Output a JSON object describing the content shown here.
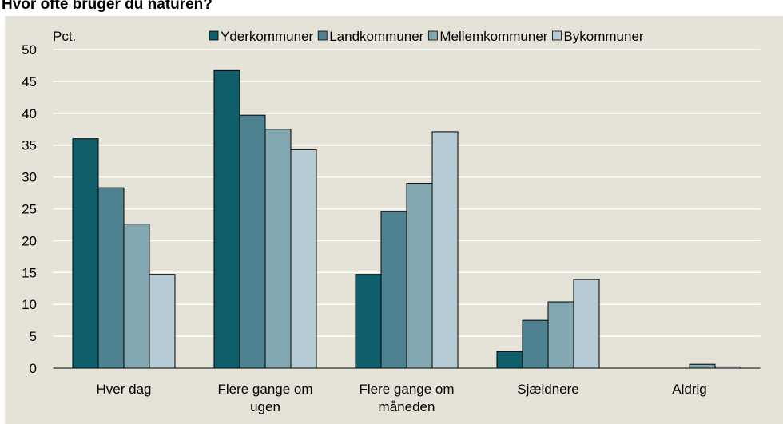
{
  "chart_data": {
    "type": "bar",
    "title": "Hvor ofte bruger du naturen?",
    "y_label": "Pct.",
    "categories": [
      "Hver dag",
      "Flere gange om ugen",
      "Flere gange om måneden",
      "Sjældnere",
      "Aldrig"
    ],
    "series": [
      {
        "name": "Yderkommuner",
        "color": "#0e5f6b",
        "values": [
          36,
          46.7,
          14.7,
          2.6,
          0
        ]
      },
      {
        "name": "Landkommuner",
        "color": "#4f8291",
        "values": [
          28.3,
          39.7,
          24.6,
          7.5,
          0
        ]
      },
      {
        "name": "Mellemkommuner",
        "color": "#82a7b0",
        "values": [
          22.6,
          37.5,
          29,
          10.4,
          0.6
        ]
      },
      {
        "name": "Bykommuner",
        "color": "#b7cbd5",
        "values": [
          14.7,
          34.3,
          37.1,
          13.9,
          0.2
        ]
      }
    ],
    "ylim": [
      0,
      50
    ],
    "yticks": [
      0,
      5,
      10,
      15,
      20,
      25,
      30,
      35,
      40,
      45,
      50
    ],
    "grid": true,
    "legend": "top"
  }
}
